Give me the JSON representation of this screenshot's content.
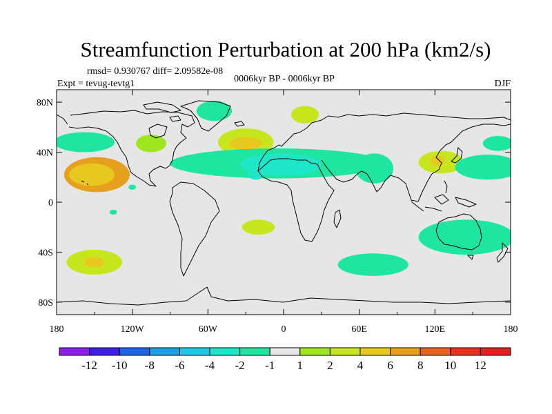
{
  "title": "Streamfunction Perturbation at 200 hPa (km2/s)",
  "stats": "rmsd= 0.930767 diff= 2.09582e-08",
  "experiment": "Expt = tevug-tevtg1",
  "period": "0006kyr BP - 0006kyr BP",
  "season": "DJF",
  "colors": {
    "ocean_background": "#e6e6e6",
    "coastline": "#000000",
    "cb": [
      "#8c1ee6",
      "#3c1ee6",
      "#1e64e6",
      "#1ea0e6",
      "#1ec8e6",
      "#1ee6c8",
      "#1ee6a0",
      "#e6e6e6",
      "#a0e61e",
      "#c8e61e",
      "#e6c81e",
      "#e6a01e",
      "#e6641e",
      "#e6321e",
      "#e61e1e"
    ]
  },
  "chart_data": {
    "type": "heatmap",
    "projection": "cylindrical equidistant",
    "xlabel": "longitude",
    "ylabel": "latitude",
    "xlim": [
      -180,
      180
    ],
    "ylim": [
      -90,
      90
    ],
    "x_ticks": [
      {
        "value": -180,
        "label": "180"
      },
      {
        "value": -120,
        "label": "120W"
      },
      {
        "value": -60,
        "label": "60W"
      },
      {
        "value": 0,
        "label": "0"
      },
      {
        "value": 60,
        "label": "60E"
      },
      {
        "value": 120,
        "label": "120E"
      },
      {
        "value": 180,
        "label": "180"
      }
    ],
    "y_ticks": [
      {
        "value": 80,
        "label": "80N"
      },
      {
        "value": 40,
        "label": "40N"
      },
      {
        "value": 0,
        "label": "0"
      },
      {
        "value": -40,
        "label": "40S"
      },
      {
        "value": -80,
        "label": "80S"
      }
    ],
    "colorbar": {
      "levels": [
        -12,
        -10,
        -8,
        -6,
        -4,
        -2,
        -1,
        1,
        2,
        4,
        6,
        8,
        10,
        12
      ],
      "labels": [
        "-12",
        "-10",
        "-8",
        "-6",
        "-4",
        "-2",
        "-1",
        "1",
        "2",
        "4",
        "6",
        "8",
        "10",
        "12"
      ]
    },
    "anomalies": [
      {
        "lon": -148,
        "lat": 22,
        "rlon": 26,
        "rlat": 14,
        "value": 6
      },
      {
        "lon": -152,
        "lat": 22,
        "rlon": 18,
        "rlat": 9,
        "value": 4
      },
      {
        "lon": -150,
        "lat": -48,
        "rlon": 22,
        "rlat": 10,
        "value": 3
      },
      {
        "lon": -150,
        "lat": -48,
        "rlon": 8,
        "rlat": 4,
        "value": 4
      },
      {
        "lon": -158,
        "lat": 48,
        "rlon": 24,
        "rlat": 8,
        "value": -1.5
      },
      {
        "lon": -105,
        "lat": 47,
        "rlon": 12,
        "rlat": 7,
        "value": 1.5
      },
      {
        "lon": -120,
        "lat": 12,
        "rlon": 3,
        "rlat": 2,
        "value": -1.5
      },
      {
        "lon": -135,
        "lat": -8,
        "rlon": 3,
        "rlat": 2,
        "value": -1.5
      },
      {
        "lon": -55,
        "lat": 73,
        "rlon": 14,
        "rlat": 8,
        "value": -1.5
      },
      {
        "lon": -30,
        "lat": 48,
        "rlon": 22,
        "rlat": 11,
        "value": 3
      },
      {
        "lon": -30,
        "lat": 47,
        "rlon": 13,
        "rlat": 5,
        "value": 4
      },
      {
        "lon": 17,
        "lat": 70,
        "rlon": 11,
        "rlat": 7,
        "value": 3
      },
      {
        "lon": -5,
        "lat": 31,
        "rlon": 85,
        "rlat": 12,
        "value": -1.5
      },
      {
        "lon": -2,
        "lat": 30,
        "rlon": 32,
        "rlat": 9,
        "value": -3
      },
      {
        "lon": -22,
        "lat": 22,
        "rlon": 6,
        "rlat": 4,
        "value": -4
      },
      {
        "lon": 72,
        "lat": 27,
        "rlon": 15,
        "rlat": 12,
        "value": -1.5
      },
      {
        "lon": -20,
        "lat": -20,
        "rlon": 13,
        "rlat": 6,
        "value": 2
      },
      {
        "lon": 71,
        "lat": -50,
        "rlon": 28,
        "rlat": 9,
        "value": -1.5
      },
      {
        "lon": 125,
        "lat": 32,
        "rlon": 18,
        "rlat": 9,
        "value": 2
      },
      {
        "lon": 122,
        "lat": 33,
        "rlon": 6,
        "rlat": 4,
        "value": 4
      },
      {
        "lon": 162,
        "lat": 28,
        "rlon": 26,
        "rlat": 10,
        "value": -1.5
      },
      {
        "lon": 170,
        "lat": 47,
        "rlon": 12,
        "rlat": 6,
        "value": -1.5
      },
      {
        "lon": 145,
        "lat": -28,
        "rlon": 38,
        "rlat": 14,
        "value": -1.5
      }
    ]
  }
}
